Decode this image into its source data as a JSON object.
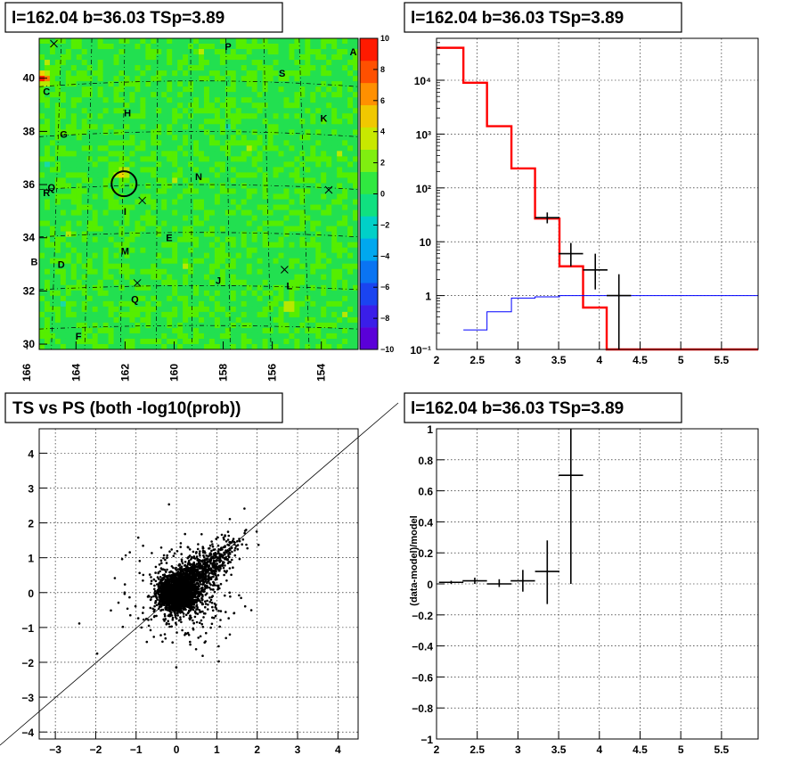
{
  "chart_data": [
    {
      "type": "heatmap",
      "title": "l=162.04 b=36.03 TSp=3.89",
      "xlim": [
        165.5,
        152.5
      ],
      "ylim": [
        29.8,
        41.5
      ],
      "xticks": [
        166,
        164,
        162,
        160,
        158,
        156,
        154
      ],
      "xtick_labels": [
        "166",
        "164",
        "162",
        "160",
        "158",
        "156",
        "154"
      ],
      "yticks": [
        30,
        32,
        34,
        36,
        38,
        40
      ],
      "ytick_labels": [
        "30",
        "32",
        "34",
        "36",
        "38",
        "40"
      ],
      "colorbar": {
        "range": [
          -10,
          10
        ],
        "ticks": [
          -10,
          -8,
          -6,
          -4,
          -2,
          0,
          2,
          4,
          6,
          8,
          10
        ],
        "tick_labels": [
          "−10",
          "−8",
          "−6",
          "−4",
          "−2",
          "0",
          "2",
          "4",
          "6",
          "8",
          "10"
        ]
      },
      "source_circle": {
        "l": 162.04,
        "b": 36.03
      },
      "labels": [
        {
          "text": "P",
          "l": 157.8,
          "b": 41.2
        },
        {
          "text": "A",
          "l": 152.7,
          "b": 41.0
        },
        {
          "text": "S",
          "l": 155.6,
          "b": 40.2
        },
        {
          "text": "C",
          "l": 165.2,
          "b": 39.5
        },
        {
          "text": "H",
          "l": 161.9,
          "b": 38.7
        },
        {
          "text": "K",
          "l": 153.9,
          "b": 38.5
        },
        {
          "text": "G",
          "l": 164.5,
          "b": 37.9
        },
        {
          "text": "N",
          "l": 159.0,
          "b": 36.3
        },
        {
          "text": "Q",
          "l": 165.0,
          "b": 35.9
        },
        {
          "text": "R",
          "l": 165.2,
          "b": 35.7
        },
        {
          "text": "I",
          "l": 162.0,
          "b": 35.0
        },
        {
          "text": "E",
          "l": 160.2,
          "b": 34.0
        },
        {
          "text": "M",
          "l": 162.0,
          "b": 33.5
        },
        {
          "text": "B",
          "l": 165.7,
          "b": 33.1
        },
        {
          "text": "D",
          "l": 164.6,
          "b": 33.0
        },
        {
          "text": "J",
          "l": 158.2,
          "b": 32.4
        },
        {
          "text": "L",
          "l": 155.3,
          "b": 32.2
        },
        {
          "text": "Q",
          "l": 161.6,
          "b": 31.7
        },
        {
          "text": "F",
          "l": 163.9,
          "b": 30.3
        }
      ],
      "crosses": [
        {
          "l": 164.9,
          "b": 41.3
        },
        {
          "l": 161.3,
          "b": 35.4
        },
        {
          "l": 153.7,
          "b": 35.8
        },
        {
          "l": 155.5,
          "b": 32.8
        },
        {
          "l": 161.5,
          "b": 32.3
        }
      ],
      "hot_spots": [
        {
          "l": 165.3,
          "b": 40.0,
          "value": 9
        },
        {
          "l": 162.1,
          "b": 36.4,
          "value": 5
        },
        {
          "l": 155.3,
          "b": 31.4,
          "value": 4
        }
      ]
    },
    {
      "type": "line",
      "title": "l=162.04 b=36.03 TSp=3.89",
      "xlim": [
        2,
        5.95
      ],
      "ylim": [
        0.1,
        60000
      ],
      "yscale": "log",
      "xticks": [
        2,
        2.5,
        3,
        3.5,
        4,
        4.5,
        5,
        5.5
      ],
      "xtick_labels": [
        "2",
        "2.5",
        "3",
        "3.5",
        "4",
        "4.5",
        "5",
        "5.5"
      ],
      "yticks": [
        0.1,
        1,
        10,
        100,
        1000,
        10000
      ],
      "ytick_labels": [
        "10⁻¹",
        "1",
        "10",
        "10²",
        "10³",
        "10⁴"
      ],
      "grid": true,
      "series": [
        {
          "color": "#ff0000",
          "style": "step",
          "edges": [
            2.0,
            2.33,
            2.62,
            2.92,
            3.21,
            3.51,
            3.8,
            4.09,
            4.39,
            5.95
          ],
          "values": [
            40000,
            9000,
            1400,
            230,
            27,
            3.5,
            0.6,
            0.1,
            0.1
          ]
        },
        {
          "color": "#0000ff",
          "style": "step",
          "edges": [
            2.33,
            2.62,
            2.92,
            3.21,
            3.51,
            3.8,
            4.09,
            4.39,
            5.95
          ],
          "values": [
            0.23,
            0.5,
            0.9,
            0.95,
            1.0,
            1.0,
            1.0,
            1.0
          ]
        },
        {
          "color": "#000000",
          "style": "errorbars",
          "points": [
            {
              "x": 3.36,
              "xerr": 0.15,
              "y": 28,
              "ylo": 22,
              "yhi": 35
            },
            {
              "x": 3.65,
              "xerr": 0.15,
              "y": 6,
              "ylo": 3.5,
              "yhi": 9.5
            },
            {
              "x": 3.95,
              "xerr": 0.15,
              "y": 3,
              "ylo": 1.3,
              "yhi": 6
            },
            {
              "x": 4.24,
              "xerr": 0.15,
              "y": 1.0,
              "ylo": 0.1,
              "yhi": 2.5
            }
          ]
        }
      ]
    },
    {
      "type": "scatter",
      "title": "TS vs PS (both -log10(prob))",
      "xlim": [
        -3.4,
        4.5
      ],
      "ylim": [
        -4.2,
        4.7
      ],
      "xticks": [
        -3,
        -2,
        -1,
        0,
        1,
        2,
        3,
        4
      ],
      "xtick_labels": [
        "−3",
        "−2",
        "−1",
        "0",
        "1",
        "2",
        "3",
        "4"
      ],
      "yticks": [
        -4,
        -3,
        -2,
        -1,
        0,
        1,
        2,
        3,
        4
      ],
      "ytick_labels": [
        "−4",
        "−3",
        "−2",
        "−1",
        "0",
        "1",
        "2",
        "3",
        "4"
      ],
      "grid": true,
      "diagonal": "y = x",
      "point_count": 3200,
      "distribution": "dense core near (0,0) with sigma ~0.35, tail toward positive x and y up to ~3, sparse outliers to x=-3.5 and y=-3.5"
    },
    {
      "type": "scatter",
      "title": "l=162.04 b=36.03 TSp=3.89",
      "ylabel": "(data-model)/model",
      "xlim": [
        2,
        5.95
      ],
      "ylim": [
        -1,
        1
      ],
      "xticks": [
        2,
        2.5,
        3,
        3.5,
        4,
        4.5,
        5,
        5.5
      ],
      "xtick_labels": [
        "2",
        "2.5",
        "3",
        "3.5",
        "4",
        "4.5",
        "5",
        "5.5"
      ],
      "yticks": [
        -1,
        -0.8,
        -0.6,
        -0.4,
        -0.2,
        0,
        0.2,
        0.4,
        0.6,
        0.8,
        1
      ],
      "ytick_labels": [
        "−1",
        "−0.8",
        "−0.6",
        "−0.4",
        "−0.2",
        "0",
        "0.2",
        "0.4",
        "0.6",
        "0.8",
        "1"
      ],
      "grid": true,
      "points": [
        {
          "x": 2.18,
          "xerr": 0.15,
          "y": 0.01,
          "ylo": 0.0,
          "yhi": 0.02
        },
        {
          "x": 2.47,
          "xerr": 0.15,
          "y": 0.02,
          "ylo": 0.0,
          "yhi": 0.04
        },
        {
          "x": 2.77,
          "xerr": 0.15,
          "y": 0.0,
          "ylo": -0.02,
          "yhi": 0.03
        },
        {
          "x": 3.06,
          "xerr": 0.15,
          "y": 0.02,
          "ylo": -0.05,
          "yhi": 0.09
        },
        {
          "x": 3.36,
          "xerr": 0.15,
          "y": 0.08,
          "ylo": -0.13,
          "yhi": 0.28
        },
        {
          "x": 3.65,
          "xerr": 0.15,
          "y": 0.7,
          "ylo": 0.0,
          "yhi": 1.0
        }
      ]
    }
  ]
}
